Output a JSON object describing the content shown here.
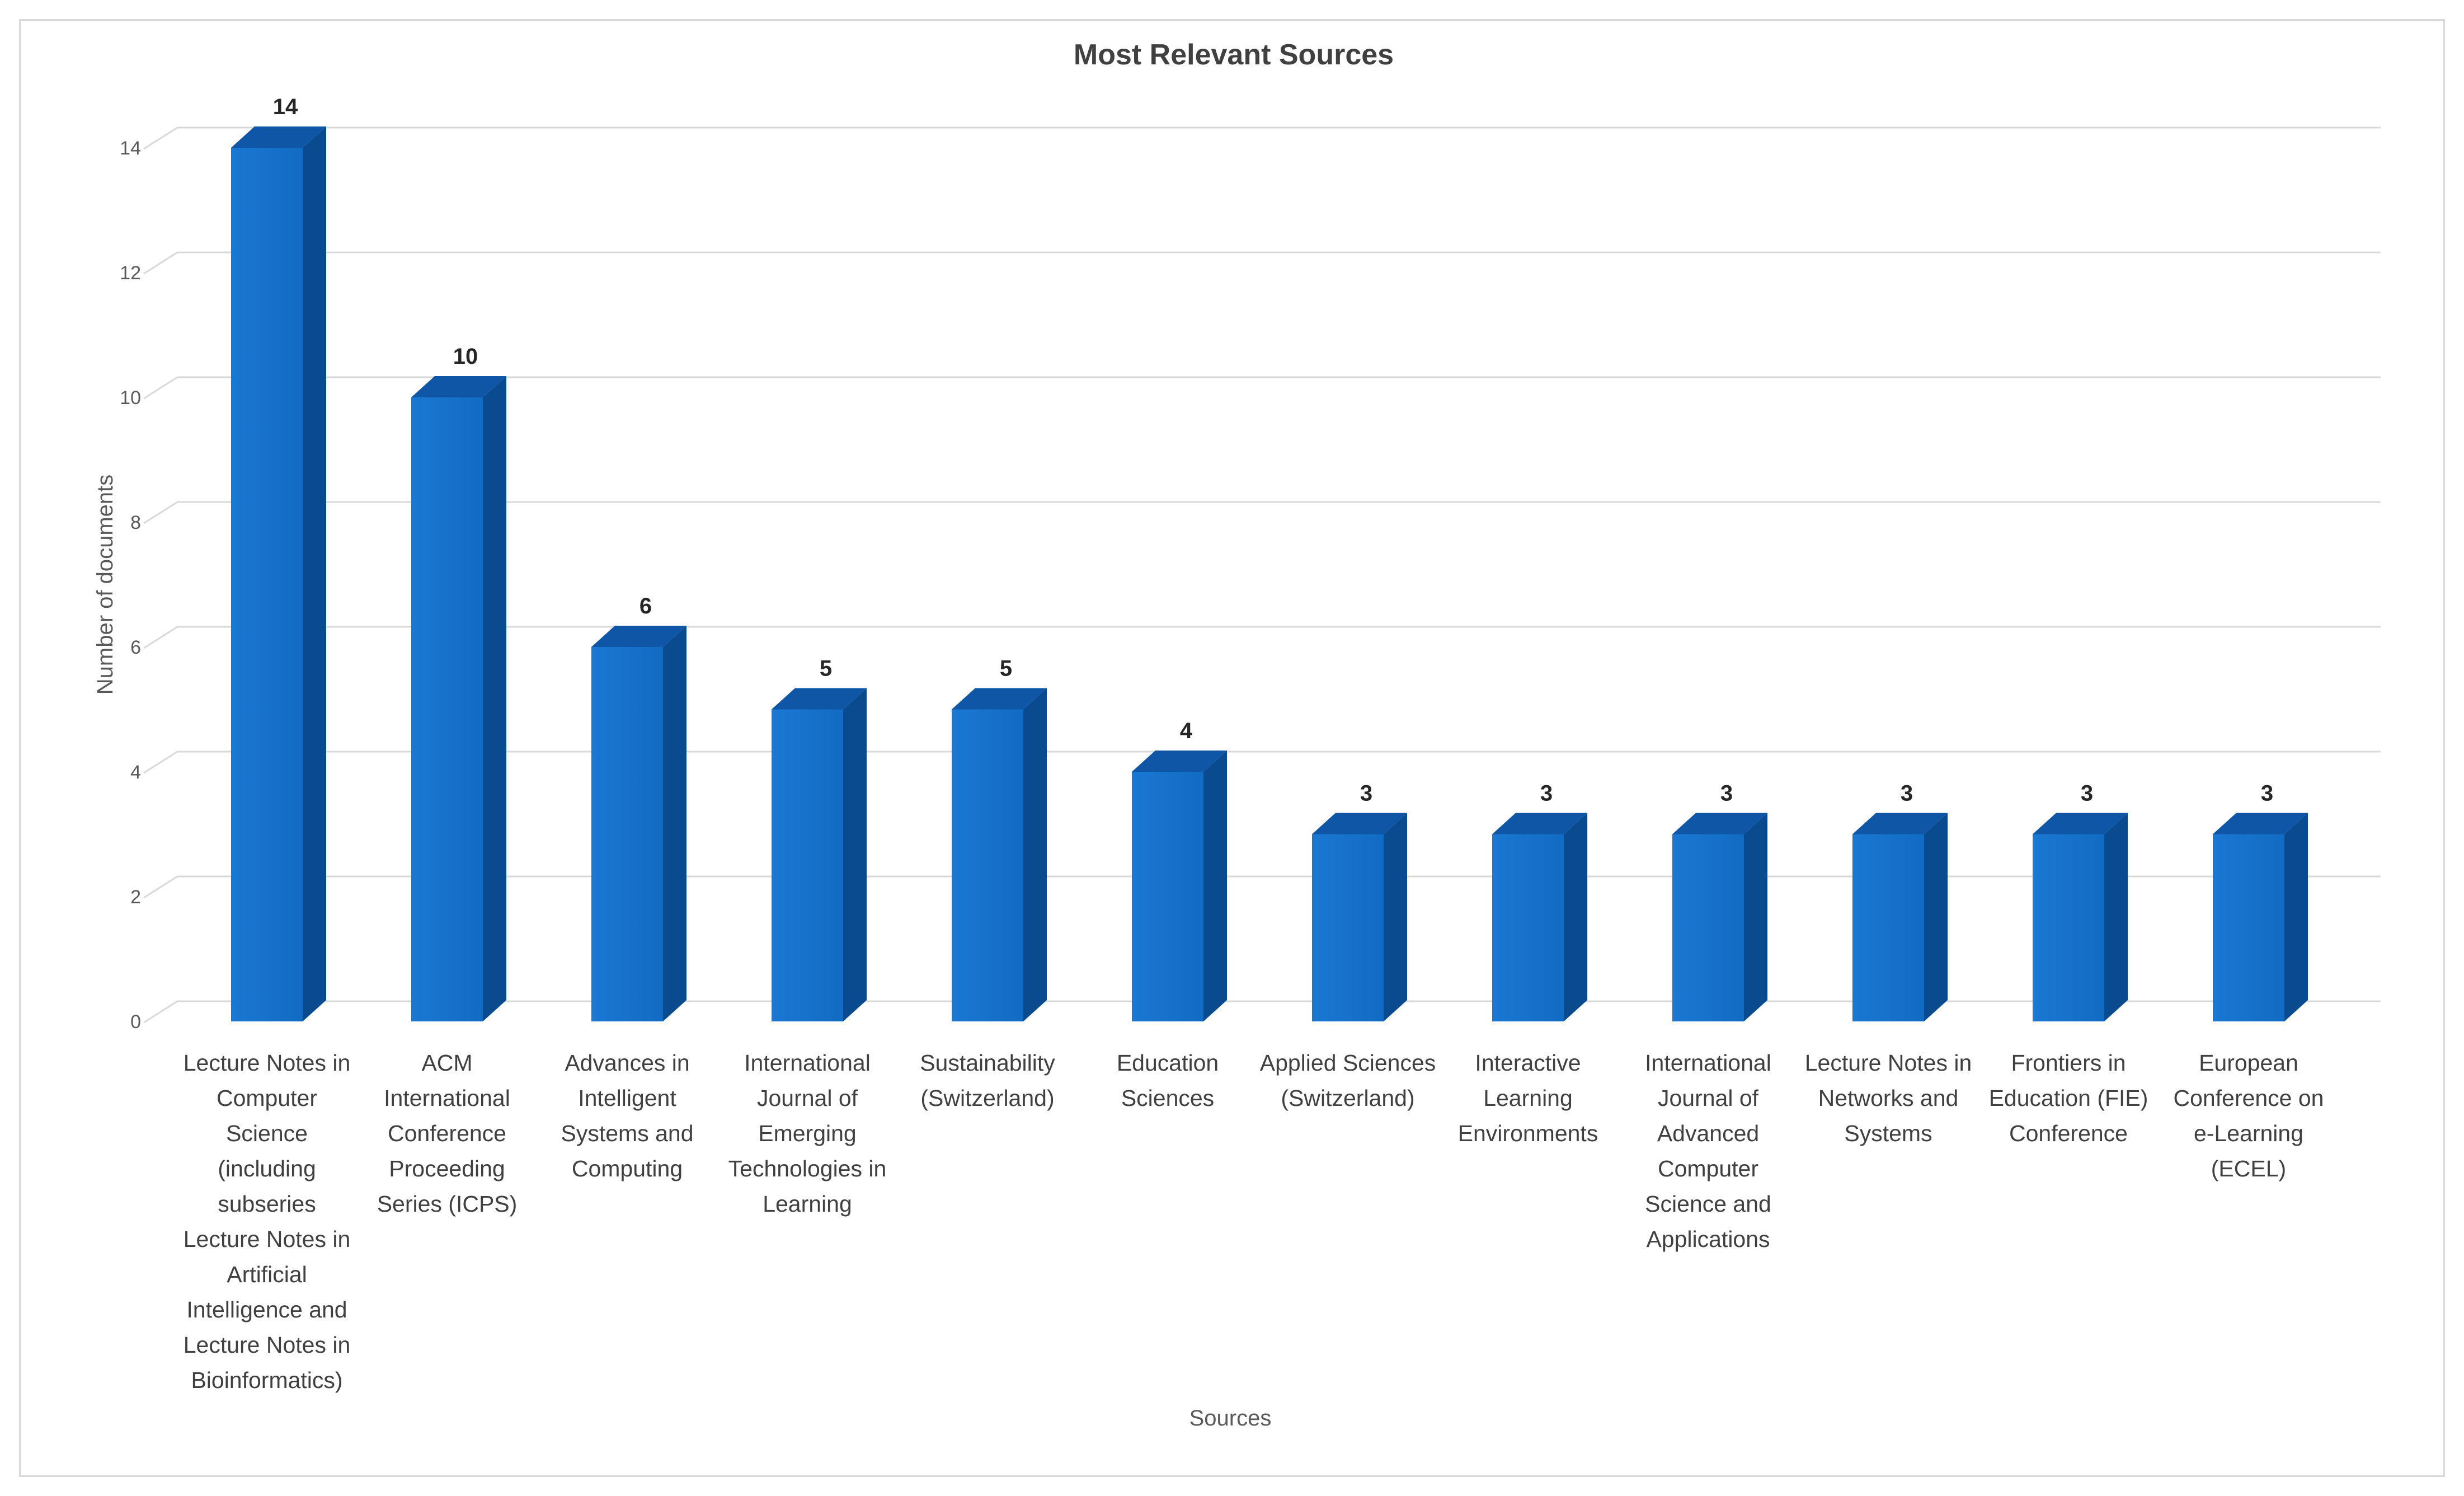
{
  "chart_data": {
    "type": "bar",
    "title": "Most Relevant Sources",
    "xlabel": "Sources",
    "ylabel": "Number of documents",
    "ylim": [
      0,
      14
    ],
    "yticks": [
      0,
      2,
      4,
      6,
      8,
      10,
      12,
      14
    ],
    "grid": true,
    "legend": "none",
    "bar_color": "#1472cc",
    "categories": [
      "Lecture Notes in Computer Science (including subseries Lecture Notes in Artificial Intelligence and Lecture Notes in Bioinformatics)",
      "ACM International Conference Proceeding Series (ICPS)",
      "Advances in Intelligent Systems and Computing",
      "International Journal of Emerging Technologies in Learning",
      "Sustainability (Switzerland)",
      "Education Sciences",
      "Applied Sciences (Switzerland)",
      "Interactive Learning Environments",
      "International Journal of Advanced Computer Science and Applications",
      "Lecture Notes in Networks and Systems",
      "Frontiers in Education (FIE) Conference",
      "European Conference on e-Learning (ECEL)"
    ],
    "category_lines": [
      [
        "Lecture Notes in",
        "Computer",
        "Science",
        "(including",
        "subseries",
        "Lecture Notes in",
        "Artificial",
        "Intelligence and",
        "Lecture Notes in",
        "Bioinformatics)"
      ],
      [
        "ACM",
        "International",
        "Conference",
        "Proceeding",
        "Series (ICPS)"
      ],
      [
        "Advances in",
        "Intelligent",
        "Systems and",
        "Computing"
      ],
      [
        "International",
        "Journal of",
        "Emerging",
        "Technologies in",
        "Learning"
      ],
      [
        "Sustainability",
        "(Switzerland)"
      ],
      [
        "Education",
        "Sciences"
      ],
      [
        "Applied Sciences",
        "(Switzerland)"
      ],
      [
        "Interactive",
        "Learning",
        "Environments"
      ],
      [
        "International",
        "Journal of",
        "Advanced",
        "Computer",
        "Science and",
        "Applications"
      ],
      [
        "Lecture Notes in",
        "Networks and",
        "Systems"
      ],
      [
        "Frontiers in",
        "Education (FIE)",
        "Conference"
      ],
      [
        "European",
        "Conference on",
        "e-Learning",
        "(ECEL)"
      ]
    ],
    "values": [
      14,
      10,
      6,
      5,
      5,
      4,
      3,
      3,
      3,
      3,
      3,
      3
    ]
  }
}
